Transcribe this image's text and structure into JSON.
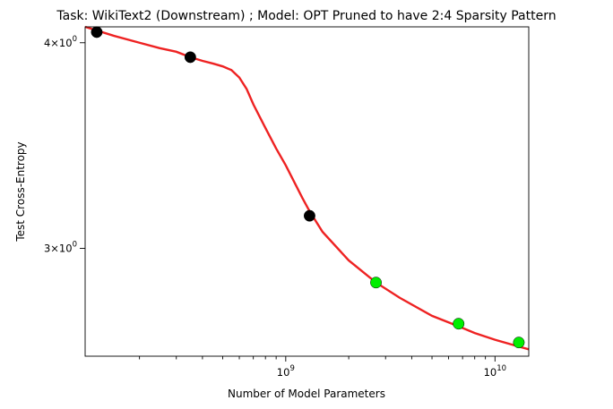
{
  "chart_data": {
    "type": "scatter",
    "title": "Task: WikiText2 (Downstream) ; Model: OPT Pruned to have 2:4 Sparsity Pattern",
    "xlabel": "Number of Model Parameters",
    "ylabel": "Test Cross-Entropy",
    "x_scale": "log",
    "y_scale": "log",
    "xlim": [
      110000000.0,
      14500000000.0
    ],
    "ylim": [
      2.58,
      4.09
    ],
    "x_ticks": [
      {
        "value": 1000000000.0,
        "base": "10",
        "exp": "9"
      },
      {
        "value": 10000000000.0,
        "base": "10",
        "exp": "10"
      }
    ],
    "y_ticks": [
      {
        "value": 3,
        "coef": "3",
        "base": "10",
        "exp": "0"
      },
      {
        "value": 4,
        "coef": "4",
        "base": "10",
        "exp": "0"
      }
    ],
    "grid": false,
    "series": [
      {
        "marker_color": "#000000",
        "points": [
          {
            "x": 125000000.0,
            "y": 4.06
          },
          {
            "x": 350000000.0,
            "y": 3.92
          },
          {
            "x": 1300000000.0,
            "y": 3.14
          }
        ]
      },
      {
        "marker_color": "#00ee00",
        "points": [
          {
            "x": 2700000000.0,
            "y": 2.86
          },
          {
            "x": 6700000000.0,
            "y": 2.7
          },
          {
            "x": 13000000000.0,
            "y": 2.63
          }
        ]
      }
    ],
    "fit_line": {
      "color": "#ee2222",
      "points": [
        [
          110000000.0,
          4.09
        ],
        [
          150000000.0,
          4.04
        ],
        [
          200000000.0,
          4.0
        ],
        [
          250000000.0,
          3.97
        ],
        [
          300000000.0,
          3.95
        ],
        [
          350000000.0,
          3.92
        ],
        [
          400000000.0,
          3.9
        ],
        [
          450000000.0,
          3.885
        ],
        [
          500000000.0,
          3.87
        ],
        [
          550000000.0,
          3.85
        ],
        [
          600000000.0,
          3.81
        ],
        [
          650000000.0,
          3.75
        ],
        [
          700000000.0,
          3.67
        ],
        [
          800000000.0,
          3.55
        ],
        [
          900000000.0,
          3.45
        ],
        [
          1000000000.0,
          3.37
        ],
        [
          1200000000.0,
          3.22
        ],
        [
          1300000000.0,
          3.16
        ],
        [
          1500000000.0,
          3.07
        ],
        [
          2000000000.0,
          2.95
        ],
        [
          2700000000.0,
          2.86
        ],
        [
          3500000000.0,
          2.8
        ],
        [
          5000000000.0,
          2.73
        ],
        [
          6700000000.0,
          2.69
        ],
        [
          8000000000.0,
          2.665
        ],
        [
          10000000000.0,
          2.64
        ],
        [
          13000000000.0,
          2.615
        ],
        [
          14500000000.0,
          2.605
        ]
      ]
    }
  }
}
